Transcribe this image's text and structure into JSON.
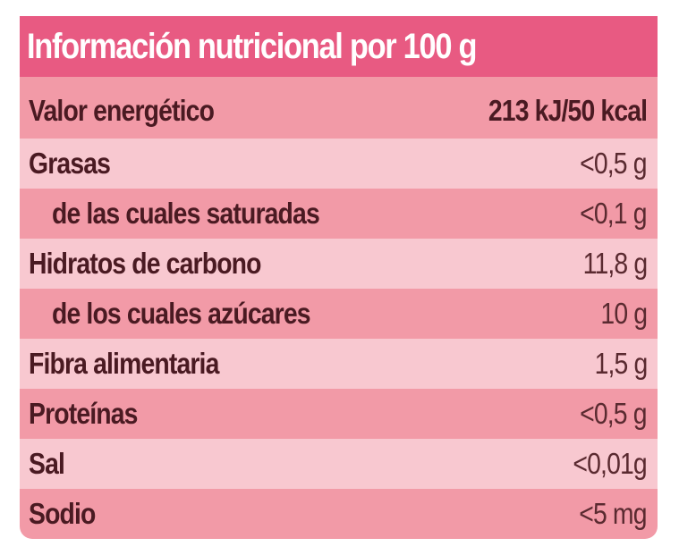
{
  "title": "Información nutricional por 100 g",
  "colors": {
    "header": "#e85a82",
    "row_dark": "#f29aa7",
    "row_light": "#f8c8d0",
    "text": "#4a1a22"
  },
  "rows": [
    {
      "label": "Valor energético",
      "value": "213 kJ/50 kcal"
    },
    {
      "label": "Grasas",
      "value": "<0,5 g"
    },
    {
      "label": "de las cuales saturadas",
      "value": "<0,1 g"
    },
    {
      "label": "Hidratos de carbono",
      "value": "11,8 g"
    },
    {
      "label": "de los cuales azúcares",
      "value": "10 g"
    },
    {
      "label": "Fibra alimentaria",
      "value": "1,5 g"
    },
    {
      "label": "Proteínas",
      "value": "<0,5 g"
    },
    {
      "label": "Sal",
      "value": "<0,01g"
    },
    {
      "label": "Sodio",
      "value": "<5 mg"
    }
  ]
}
